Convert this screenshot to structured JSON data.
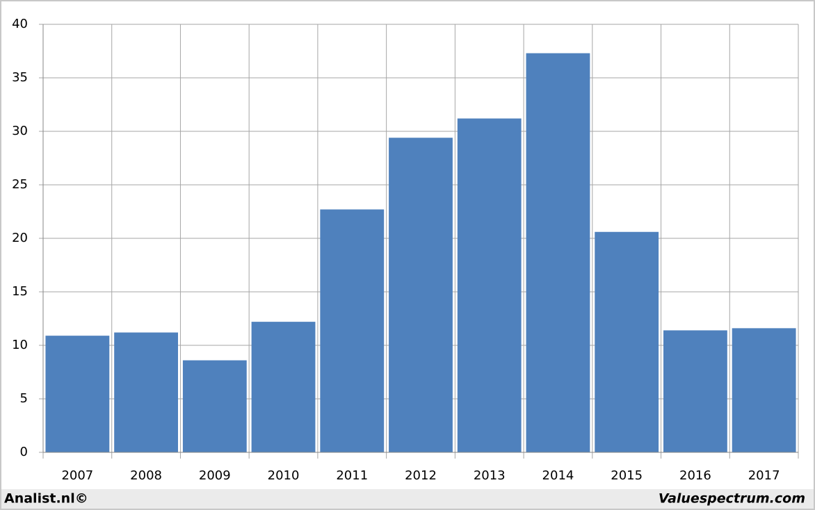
{
  "chart_data": {
    "type": "bar",
    "categories": [
      "2007",
      "2008",
      "2009",
      "2010",
      "2011",
      "2012",
      "2013",
      "2014",
      "2015",
      "2016",
      "2017"
    ],
    "values": [
      10.9,
      11.2,
      8.6,
      12.2,
      22.7,
      29.4,
      31.2,
      37.3,
      20.6,
      11.4,
      11.6
    ],
    "color": "#4f81bd",
    "ylim": [
      0,
      40
    ],
    "yticks": [
      0,
      5,
      10,
      15,
      20,
      25,
      30,
      35,
      40
    ],
    "grid": true,
    "source_left": "Analist.nl©",
    "source_right": "Valuespectrum.com"
  }
}
